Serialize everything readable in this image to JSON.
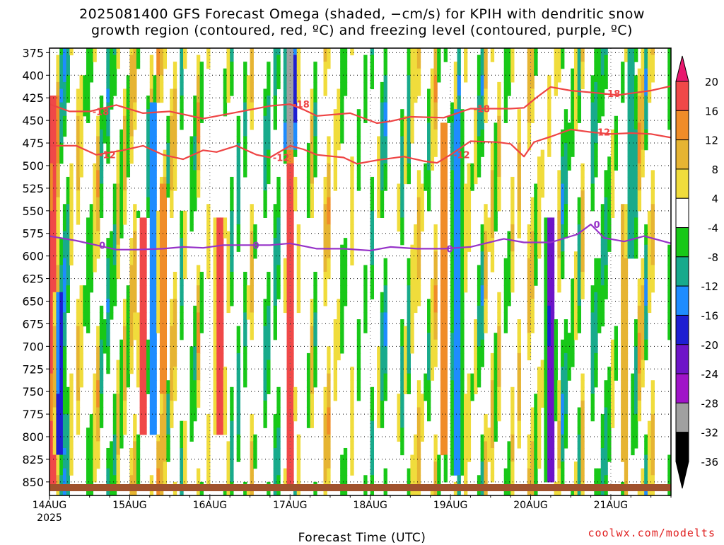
{
  "title_line1": "2025081400 GFS Forecast Omega (shaded, −cm/s) for KPIH with dendritic snow",
  "title_line2": "growth region (contoured, red, ºC) and freezing level (contoured, purple, ºC)",
  "credit": "coolwx.com/modelts",
  "chart_data": {
    "type": "heatmap",
    "title": "2025081400 GFS Forecast Omega (shaded, −cm/s) for KPIH with dendritic snow growth region (contoured, red, ºC) and freezing level (contoured, purple, ºC)",
    "xlabel": "Forecast Time (UTC)",
    "ylabel": "",
    "x_tick_labels": [
      "14AUG",
      "15AUG",
      "16AUG",
      "17AUG",
      "18AUG",
      "19AUG",
      "20AUG",
      "21AUG"
    ],
    "x_year_label": "2025",
    "xlim_hours": [
      0,
      186
    ],
    "y_ticks": [
      375,
      400,
      425,
      450,
      475,
      500,
      525,
      550,
      575,
      600,
      625,
      650,
      675,
      700,
      725,
      750,
      775,
      800,
      825,
      850
    ],
    "ylim": [
      370,
      865
    ],
    "y_axis_inverted": true,
    "grid": "dotted",
    "colorbar_levels": [
      20,
      16,
      12,
      8,
      4,
      -4,
      -8,
      -12,
      -16,
      -20,
      -24,
      -28,
      -32,
      -36
    ],
    "colorbar_colors": [
      "#e8186e",
      "#f04848",
      "#f08c28",
      "#e6b432",
      "#f0dc3c",
      "#ffffff",
      "#18c818",
      "#18aa8c",
      "#1e8cff",
      "#1e1ed2",
      "#6e14c8",
      "#a014c8",
      "#a0a0a0",
      "#000000"
    ],
    "contours": [
      {
        "label": "-18",
        "color": "#ee4444",
        "points": [
          [
            0,
            432
          ],
          [
            6,
            440
          ],
          [
            12,
            440
          ],
          [
            20,
            433
          ],
          [
            28,
            442
          ],
          [
            36,
            440
          ],
          [
            46,
            448
          ],
          [
            56,
            441
          ],
          [
            66,
            434
          ],
          [
            72,
            432
          ],
          [
            76,
            438
          ],
          [
            80,
            445
          ],
          [
            90,
            442
          ],
          [
            98,
            453
          ],
          [
            102,
            451
          ],
          [
            108,
            446
          ],
          [
            118,
            447
          ],
          [
            126,
            437
          ],
          [
            138,
            437
          ],
          [
            142,
            436
          ],
          [
            146,
            424
          ],
          [
            150,
            413
          ],
          [
            156,
            417
          ],
          [
            165,
            420
          ],
          [
            170,
            422
          ],
          [
            174,
            420
          ],
          [
            180,
            417
          ],
          [
            186,
            412
          ]
        ]
      },
      {
        "label": "-12",
        "color": "#ee4444",
        "points": [
          [
            0,
            478
          ],
          [
            8,
            478
          ],
          [
            14,
            488
          ],
          [
            22,
            483
          ],
          [
            28,
            478
          ],
          [
            34,
            488
          ],
          [
            40,
            493
          ],
          [
            46,
            483
          ],
          [
            50,
            485
          ],
          [
            56,
            478
          ],
          [
            62,
            488
          ],
          [
            66,
            491
          ],
          [
            72,
            478
          ],
          [
            76,
            482
          ],
          [
            80,
            488
          ],
          [
            88,
            491
          ],
          [
            92,
            498
          ],
          [
            98,
            494
          ],
          [
            106,
            490
          ],
          [
            112,
            495
          ],
          [
            116,
            497
          ],
          [
            120,
            488
          ],
          [
            126,
            473
          ],
          [
            134,
            474
          ],
          [
            138,
            476
          ],
          [
            142,
            490
          ],
          [
            145,
            474
          ],
          [
            150,
            468
          ],
          [
            156,
            460
          ],
          [
            162,
            463
          ],
          [
            168,
            465
          ],
          [
            174,
            464
          ],
          [
            180,
            465
          ],
          [
            186,
            469
          ]
        ]
      },
      {
        "label": "0",
        "color": "#9632c8",
        "points": [
          [
            0,
            578
          ],
          [
            8,
            583
          ],
          [
            14,
            588
          ],
          [
            20,
            593
          ],
          [
            26,
            593
          ],
          [
            34,
            592
          ],
          [
            40,
            590
          ],
          [
            46,
            591
          ],
          [
            52,
            588
          ],
          [
            60,
            588
          ],
          [
            66,
            588
          ],
          [
            72,
            586
          ],
          [
            80,
            592
          ],
          [
            88,
            592
          ],
          [
            96,
            594
          ],
          [
            102,
            590
          ],
          [
            110,
            592
          ],
          [
            118,
            592
          ],
          [
            126,
            590
          ],
          [
            136,
            581
          ],
          [
            142,
            585
          ],
          [
            150,
            585
          ],
          [
            158,
            576
          ],
          [
            162,
            565
          ],
          [
            166,
            580
          ],
          [
            172,
            584
          ],
          [
            178,
            578
          ],
          [
            186,
            586
          ]
        ]
      }
    ],
    "omega_features": [
      {
        "time_h": 1,
        "p_top": 420,
        "p_bottom": 860,
        "peak_value": 20
      },
      {
        "time_h": 3,
        "p_top": 640,
        "p_bottom": 820,
        "peak_value": -20
      },
      {
        "time_h": 28,
        "p_top": 560,
        "p_bottom": 800,
        "peak_value": 20
      },
      {
        "time_h": 31,
        "p_top": 430,
        "p_bottom": 800,
        "peak_value": -16
      },
      {
        "time_h": 34,
        "p_top": 520,
        "p_bottom": 750,
        "peak_value": 16
      },
      {
        "time_h": 51,
        "p_top": 560,
        "p_bottom": 800,
        "peak_value": 20
      },
      {
        "time_h": 72,
        "p_top": 360,
        "p_bottom": 500,
        "peak_value": -36
      },
      {
        "time_h": 72,
        "p_top": 480,
        "p_bottom": 860,
        "peak_value": 20
      },
      {
        "time_h": 118,
        "p_top": 450,
        "p_bottom": 820,
        "peak_value": 16
      },
      {
        "time_h": 122,
        "p_top": 440,
        "p_bottom": 840,
        "peak_value": -16
      },
      {
        "time_h": 150,
        "p_top": 560,
        "p_bottom": 850,
        "peak_value": -24
      },
      {
        "time_h": 172,
        "p_top": 540,
        "p_bottom": 830,
        "peak_value": 12
      },
      {
        "time_h": 174,
        "p_top": 360,
        "p_bottom": 600,
        "peak_value": -12
      }
    ]
  }
}
